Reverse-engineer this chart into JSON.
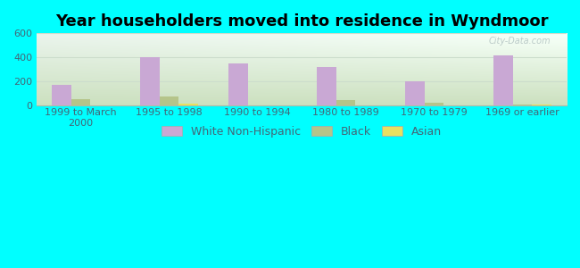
{
  "title": "Year householders moved into residence in Wyndmoor",
  "categories": [
    "1999 to March\n2000",
    "1995 to 1998",
    "1990 to 1994",
    "1980 to 1989",
    "1970 to 1979",
    "1969 or earlier"
  ],
  "series": {
    "White Non-Hispanic": [
      175,
      400,
      350,
      320,
      200,
      420
    ],
    "Black": [
      55,
      75,
      5,
      50,
      25,
      10
    ],
    "Asian": [
      5,
      20,
      5,
      5,
      5,
      10
    ]
  },
  "colors": {
    "White Non-Hispanic": "#c9a8d4",
    "Black": "#b5c48a",
    "Asian": "#e8e060"
  },
  "ylim": [
    0,
    600
  ],
  "yticks": [
    0,
    200,
    400,
    600
  ],
  "background_color": "#00ffff",
  "plot_bg_topleft": "#d8ede0",
  "plot_bg_topright": "#eaf5f0",
  "plot_bg_bottomleft": "#c8ddb0",
  "plot_bg_bottomright": "#d8ecd8",
  "bar_width": 0.22,
  "title_fontsize": 13,
  "tick_fontsize": 8,
  "legend_fontsize": 9,
  "watermark": "City-Data.com",
  "grid_color": "#ccddcc",
  "tick_color": "#446677"
}
